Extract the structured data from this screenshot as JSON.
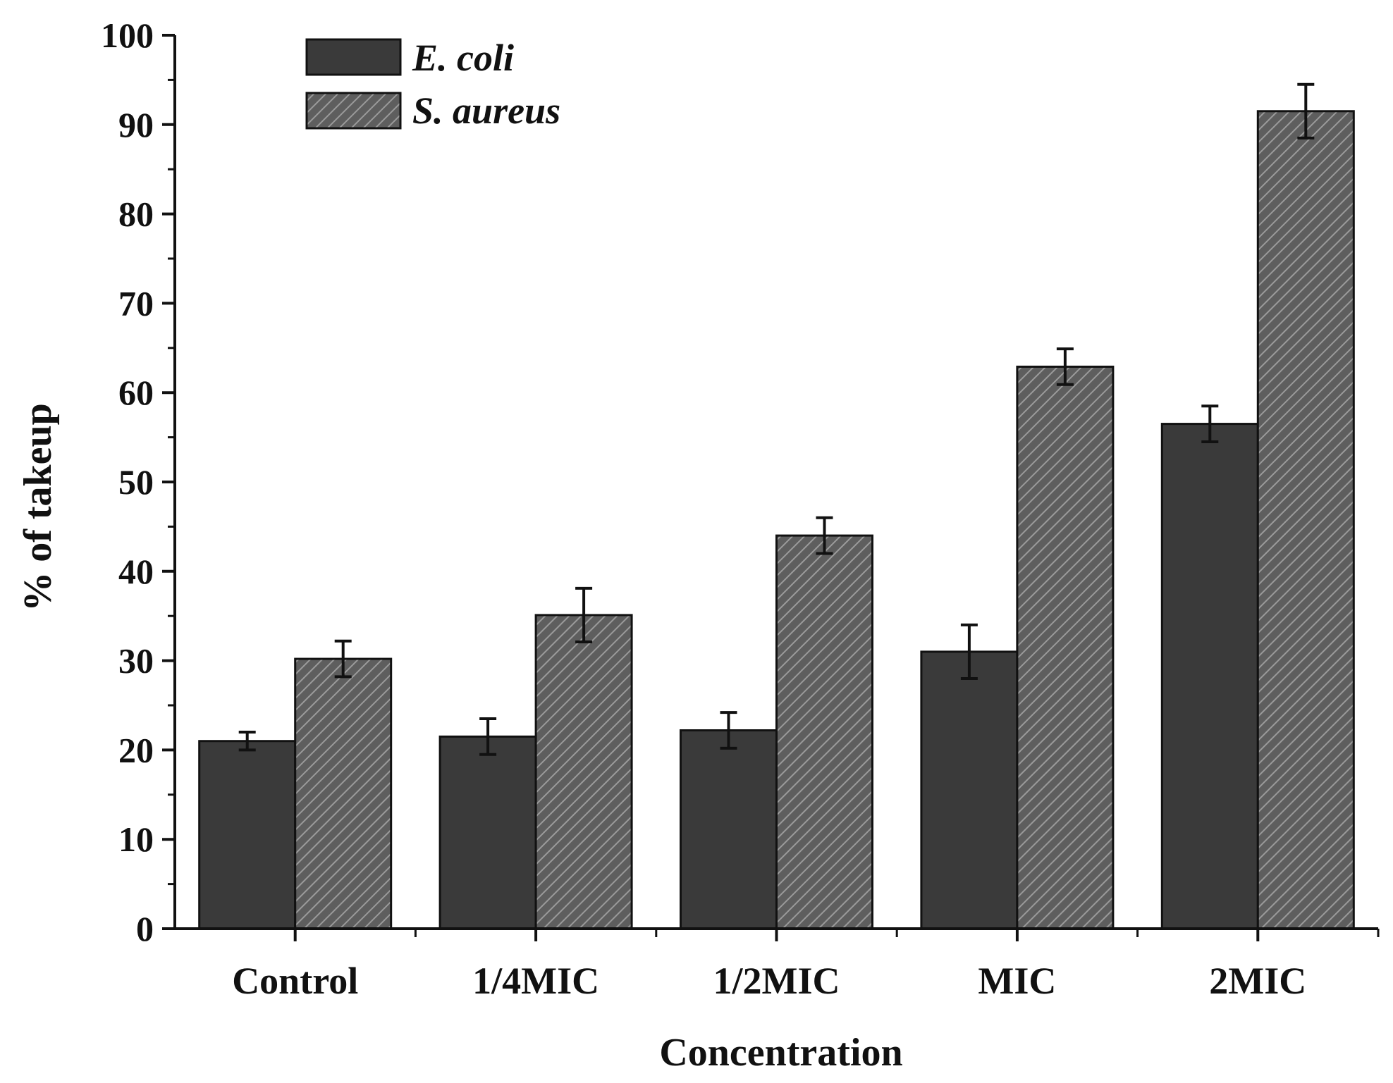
{
  "chart_data": {
    "type": "bar",
    "title": "",
    "xlabel": "Concentration",
    "ylabel": "% of takeup",
    "ylim": [
      0,
      100
    ],
    "yticks": [
      "0",
      "10",
      "20",
      "30",
      "40",
      "50",
      "60",
      "70",
      "80",
      "90",
      "100"
    ],
    "categories": [
      "Control",
      "1/4MIC",
      "1/2MIC",
      "MIC",
      "2MIC"
    ],
    "series": [
      {
        "name": "E. coli",
        "color": "#3a3a3a",
        "pattern": "solid",
        "values": [
          21.0,
          21.5,
          22.2,
          31.0,
          56.5
        ],
        "errors": [
          1.0,
          2.0,
          2.0,
          3.0,
          2.0
        ]
      },
      {
        "name": "S. aureus",
        "color": "#6a6a6a",
        "pattern": "hatched",
        "values": [
          30.2,
          35.1,
          44.0,
          62.9,
          91.5
        ],
        "errors": [
          2.0,
          3.0,
          2.0,
          2.0,
          3.0
        ]
      }
    ],
    "legend_position": "top-left",
    "grid": false
  }
}
